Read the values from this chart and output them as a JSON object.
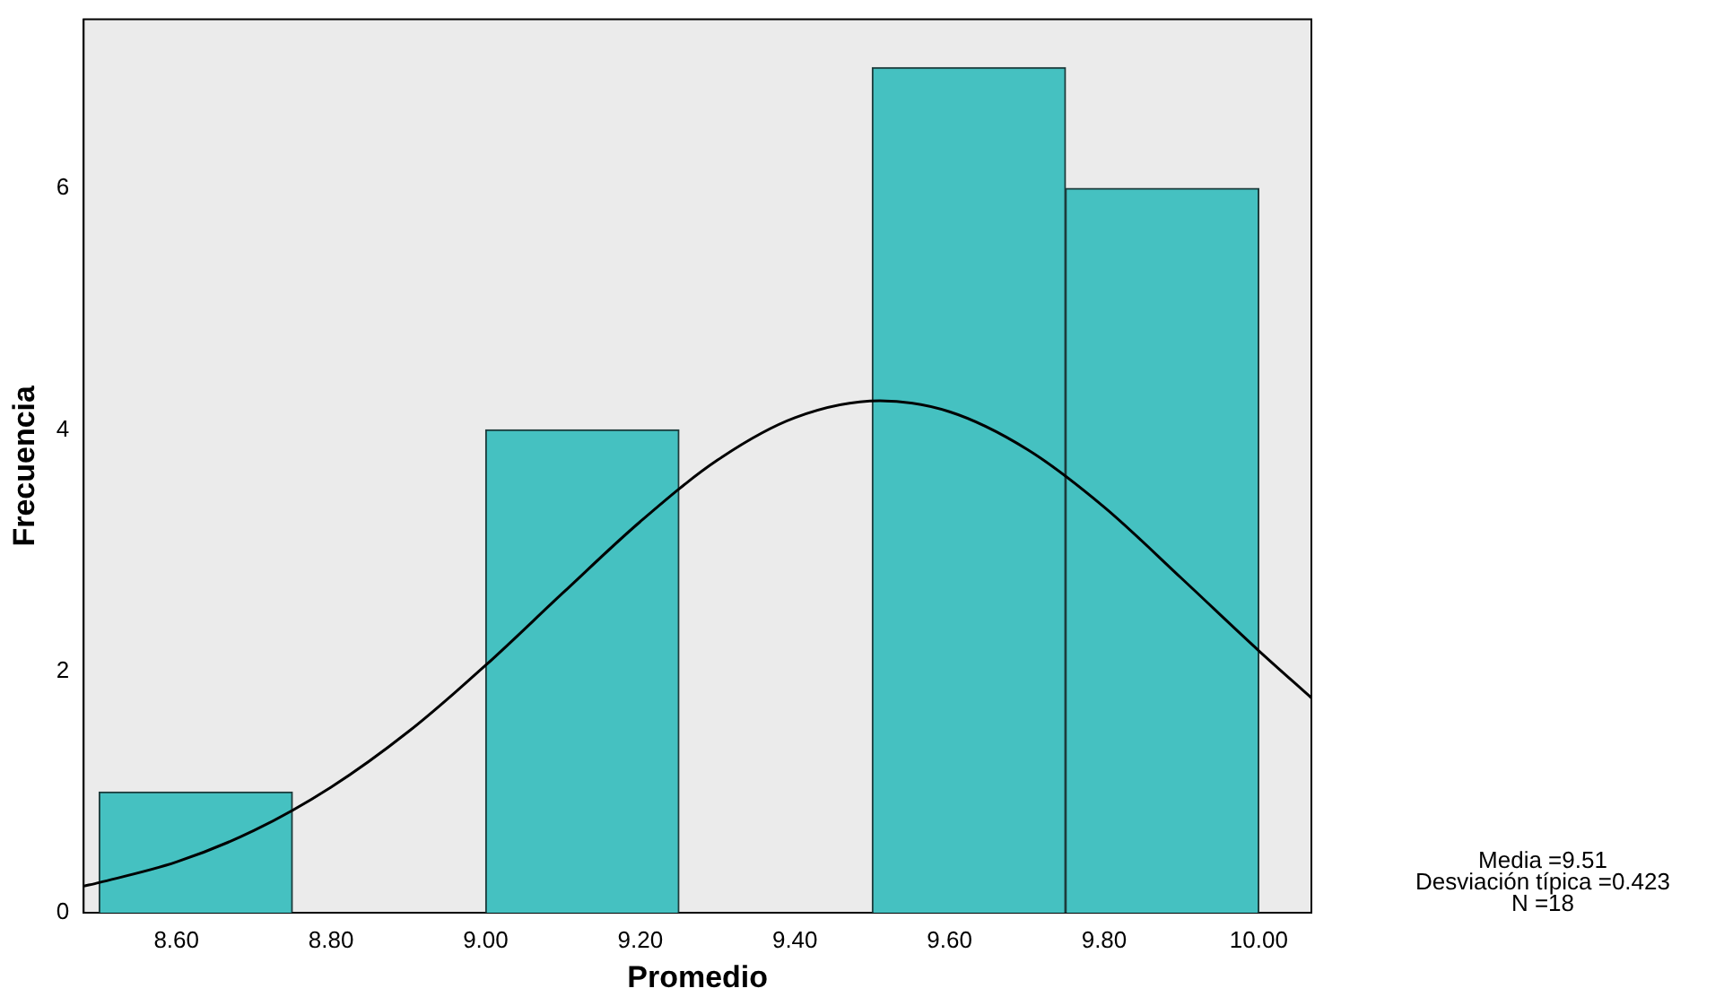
{
  "chart_data": {
    "type": "histogram",
    "xlabel": "Promedio",
    "ylabel": "Frecuencia",
    "bins": [
      8.5,
      8.75,
      9.0,
      9.25,
      9.5,
      9.75,
      10.0
    ],
    "values": [
      1,
      0,
      4,
      0,
      7,
      6
    ],
    "color": "#45c1c1",
    "xlim": [
      8.48,
      10.068
    ],
    "xticks": [
      {
        "value": 8.6,
        "label": "8.60"
      },
      {
        "value": 8.8,
        "label": "8.80"
      },
      {
        "value": 9.0,
        "label": "9.00"
      },
      {
        "value": 9.2,
        "label": "9.20"
      },
      {
        "value": 9.4,
        "label": "9.40"
      },
      {
        "value": 9.6,
        "label": "9.60"
      },
      {
        "value": 9.8,
        "label": "9.80"
      },
      {
        "value": 10.0,
        "label": "10.00"
      }
    ],
    "ylim": [
      0,
      7.4
    ],
    "yticks": [
      0,
      2,
      4,
      6
    ],
    "series": [
      {
        "type": "line",
        "color": "#000000",
        "x": [
          8.48,
          8.5,
          8.6,
          8.7,
          8.8,
          8.9,
          9.0,
          9.1,
          9.2,
          9.3,
          9.4,
          9.51,
          9.6,
          9.7,
          9.8,
          9.9,
          10.0,
          10.068
        ],
        "values": [
          0.22,
          0.25,
          0.42,
          0.68,
          1.04,
          1.5,
          2.05,
          2.65,
          3.24,
          3.75,
          4.1,
          4.24,
          4.15,
          3.84,
          3.36,
          2.77,
          2.17,
          1.78
        ]
      }
    ],
    "marker": "none",
    "line_style": "solid",
    "grid": false,
    "legend": false,
    "annotations": [
      "Media =9.51",
      "Desviación típica =0.423",
      "N =18"
    ]
  }
}
